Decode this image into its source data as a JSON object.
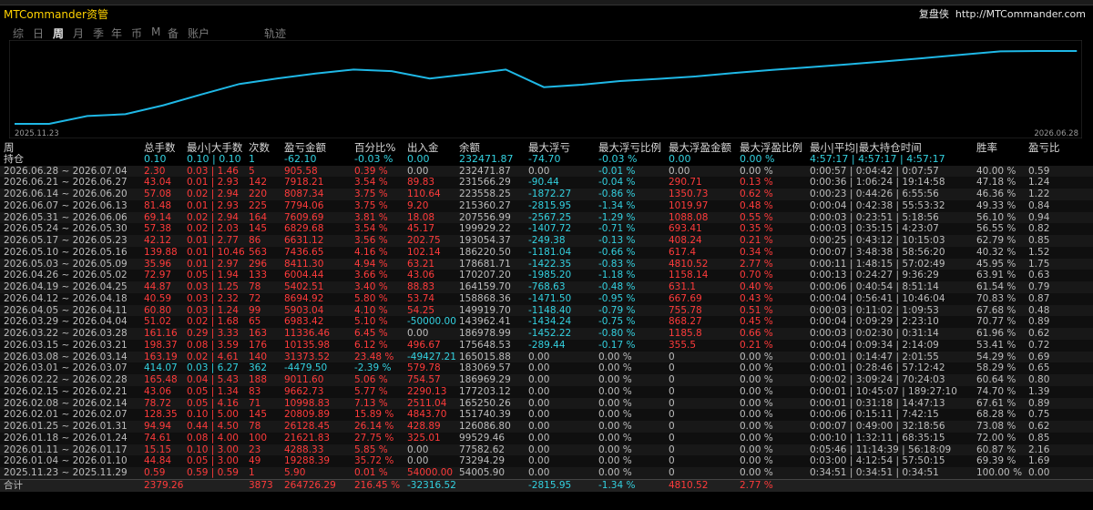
{
  "top_strip": "",
  "header": {
    "app_title": "MTCommander资管",
    "brand_name": "复盘侠",
    "brand_url": "http://MTCommander.com"
  },
  "tabs": [
    "综",
    "日",
    "周",
    "月",
    "季",
    "年",
    "币",
    "M",
    "备",
    "账户",
    "轨迹"
  ],
  "active_tab": "周",
  "chart_data": {
    "type": "line",
    "x_start_label": "2025.11.23",
    "x_end_label": "2026.06.28",
    "y_values": [
      54005.9,
      73294.29,
      77582.62,
      99529.46,
      126086.8,
      151740.39,
      165250.26,
      177203.12,
      186969.29,
      183069.57,
      165015.88,
      175648.53,
      186978.99,
      143962.41,
      149919.7,
      158868.36,
      164159.7,
      170207.2,
      178681.71,
      186220.5,
      193054.37,
      199929.22,
      207556.99,
      215360.27,
      223558.25,
      231566.29,
      232471.87,
      232471.87
    ],
    "line_color": "#1fb8e6"
  },
  "colors": {
    "profit": "#ff3b3b",
    "loss": "#33d1e0",
    "text": "#c8c8c8",
    "title": "#ffd200"
  },
  "table": {
    "corner_label": "周",
    "columns": [
      "总手数",
      "最小|大手数",
      "次数",
      "盈亏金额",
      "百分比%",
      "出入金",
      "余额",
      "最大浮亏",
      "最大浮亏比例",
      "最大浮盈金额",
      "最大浮盈比例",
      "最小|平均|最大持仓时间",
      "",
      "胜率",
      "盈亏比"
    ],
    "holding": {
      "label": "持仓",
      "cells": [
        "0.10",
        "0.10 | 0.10",
        "1",
        "-62.10",
        "-0.03 %",
        "0.00",
        "232471.87",
        "-74.70",
        "-0.03 %",
        "0.00",
        "0.00 %",
        "4:57:17 | 4:57:17 | 4:57:17",
        "",
        "",
        ""
      ]
    },
    "rows": [
      {
        "period": "2026.06.28 ~ 2026.07.04",
        "c": [
          "2.30",
          "0.03 | 1.46",
          "5",
          "905.58",
          "0.39 %",
          "0.00",
          "232471.87",
          "0.00",
          "-0.01 %",
          "0.00",
          "0.00 %",
          "0:00:57 | 0:04:42 | 0:07:57",
          "",
          "40.00 %",
          "0.59"
        ]
      },
      {
        "period": "2026.06.21 ~ 2026.06.27",
        "c": [
          "43.04",
          "0.01 | 2.93",
          "142",
          "7918.21",
          "3.54 %",
          "89.83",
          "231566.29",
          "-90.44",
          "-0.04 %",
          "290.71",
          "0.13 %",
          "0:00:36 | 1:06:24 | 19:14:58",
          "",
          "47.18 %",
          "1.24"
        ]
      },
      {
        "period": "2026.06.14 ~ 2026.06.20",
        "c": [
          "57.08",
          "0.02 | 2.94",
          "220",
          "8087.34",
          "3.75 %",
          "110.64",
          "223558.25",
          "-1872.27",
          "-0.86 %",
          "1350.73",
          "0.62 %",
          "0:00:23 | 0:44:26 | 6:55:56",
          "",
          "46.36 %",
          "1.22"
        ]
      },
      {
        "period": "2026.06.07 ~ 2026.06.13",
        "c": [
          "81.48",
          "0.01 | 2.93",
          "225",
          "7794.06",
          "3.75 %",
          "9.20",
          "215360.27",
          "-2815.95",
          "-1.34 %",
          "1019.97",
          "0.48 %",
          "0:00:04 | 0:42:38 | 55:53:32",
          "",
          "49.33 %",
          "0.84"
        ]
      },
      {
        "period": "2026.05.31 ~ 2026.06.06",
        "c": [
          "69.14",
          "0.02 | 2.94",
          "164",
          "7609.69",
          "3.81 %",
          "18.08",
          "207556.99",
          "-2567.25",
          "-1.29 %",
          "1088.08",
          "0.55 %",
          "0:00:03 | 0:23:51 | 5:18:56",
          "",
          "56.10 %",
          "0.94"
        ]
      },
      {
        "period": "2026.05.24 ~ 2026.05.30",
        "c": [
          "57.38",
          "0.02 | 2.03",
          "145",
          "6829.68",
          "3.54 %",
          "45.17",
          "199929.22",
          "-1407.72",
          "-0.71 %",
          "693.41",
          "0.35 %",
          "0:00:03 | 0:35:15 | 4:23:07",
          "",
          "56.55 %",
          "0.82"
        ]
      },
      {
        "period": "2026.05.17 ~ 2026.05.23",
        "c": [
          "42.12",
          "0.01 | 2.77",
          "86",
          "6631.12",
          "3.56 %",
          "202.75",
          "193054.37",
          "-249.38",
          "-0.13 %",
          "408.24",
          "0.21 %",
          "0:00:25 | 0:43:12 | 10:15:03",
          "",
          "62.79 %",
          "0.85"
        ]
      },
      {
        "period": "2026.05.10 ~ 2026.05.16",
        "c": [
          "139.88",
          "0.01 | 10.46",
          "563",
          "7436.65",
          "4.16 %",
          "102.14",
          "186220.50",
          "-1181.04",
          "-0.66 %",
          "617.4",
          "0.34 %",
          "0:00:07 | 3:48:38 | 58:56:20",
          "",
          "40.32 %",
          "1.52"
        ]
      },
      {
        "period": "2026.05.03 ~ 2026.05.09",
        "c": [
          "35.96",
          "0.01 | 2.97",
          "296",
          "8411.30",
          "4.94 %",
          "63.21",
          "178681.71",
          "-1422.35",
          "-0.83 %",
          "4810.52",
          "2.77 %",
          "0:00:11 | 1:48:15 | 57:02:49",
          "",
          "45.95 %",
          "1.75"
        ]
      },
      {
        "period": "2026.04.26 ~ 2026.05.02",
        "c": [
          "72.97",
          "0.05 | 1.94",
          "133",
          "6004.44",
          "3.66 %",
          "43.06",
          "170207.20",
          "-1985.20",
          "-1.18 %",
          "1158.14",
          "0.70 %",
          "0:00:13 | 0:24:27 | 9:36:29",
          "",
          "63.91 %",
          "0.63"
        ]
      },
      {
        "period": "2026.04.19 ~ 2026.04.25",
        "c": [
          "44.87",
          "0.03 | 1.25",
          "78",
          "5402.51",
          "3.40 %",
          "88.83",
          "164159.70",
          "-768.63",
          "-0.48 %",
          "631.1",
          "0.40 %",
          "0:00:06 | 0:40:54 | 8:51:14",
          "",
          "61.54 %",
          "0.79"
        ]
      },
      {
        "period": "2026.04.12 ~ 2026.04.18",
        "c": [
          "40.59",
          "0.03 | 2.32",
          "72",
          "8694.92",
          "5.80 %",
          "53.74",
          "158868.36",
          "-1471.50",
          "-0.95 %",
          "667.69",
          "0.43 %",
          "0:00:04 | 0:56:41 | 10:46:04",
          "",
          "70.83 %",
          "0.87"
        ]
      },
      {
        "period": "2026.04.05 ~ 2026.04.11",
        "c": [
          "60.80",
          "0.03 | 1.24",
          "99",
          "5903.04",
          "4.10 %",
          "54.25",
          "149919.70",
          "-1148.40",
          "-0.79 %",
          "755.78",
          "0.51 %",
          "0:00:03 | 0:11:02 | 1:09:53",
          "",
          "67.68 %",
          "0.48"
        ]
      },
      {
        "period": "2026.03.29 ~ 2026.04.04",
        "c": [
          "51.02",
          "0.02 | 1.68",
          "65",
          "6983.42",
          "5.10 %",
          "-50000.00",
          "143962.41",
          "-1434.24",
          "-0.75 %",
          "868.27",
          "0.45 %",
          "0:00:04 | 0:09:29 | 2:23:10",
          "",
          "70.77 %",
          "0.89"
        ]
      },
      {
        "period": "2026.03.22 ~ 2026.03.28",
        "c": [
          "161.16",
          "0.29 | 3.33",
          "163",
          "11336.46",
          "6.45 %",
          "0.00",
          "186978.99",
          "-1452.22",
          "-0.80 %",
          "1185.8",
          "0.66 %",
          "0:00:03 | 0:02:30 | 0:31:14",
          "",
          "61.96 %",
          "0.62"
        ]
      },
      {
        "period": "2026.03.15 ~ 2026.03.21",
        "c": [
          "198.37",
          "0.08 | 3.59",
          "176",
          "10135.98",
          "6.12 %",
          "496.67",
          "175648.53",
          "-289.44",
          "-0.17 %",
          "355.5",
          "0.21 %",
          "0:00:04 | 0:09:34 | 2:14:09",
          "",
          "53.41 %",
          "0.72"
        ]
      },
      {
        "period": "2026.03.08 ~ 2026.03.14",
        "c": [
          "163.19",
          "0.02 | 4.61",
          "140",
          "31373.52",
          "23.48 %",
          "-49427.21",
          "165015.88",
          "0.00",
          "0.00 %",
          "0",
          "0.00 %",
          "0:00:01 | 0:14:47 | 2:01:55",
          "",
          "54.29 %",
          "0.69"
        ]
      },
      {
        "period": "2026.03.01 ~ 2026.03.07",
        "c": [
          "414.07",
          "0.03 | 6.27",
          "362",
          "-4479.50",
          "-2.39 %",
          "579.78",
          "183069.57",
          "0.00",
          "0.00 %",
          "0",
          "0.00 %",
          "0:00:01 | 0:28:46 | 57:12:42",
          "",
          "58.29 %",
          "0.65"
        ]
      },
      {
        "period": "2026.02.22 ~ 2026.02.28",
        "c": [
          "165.48",
          "0.04 | 5.43",
          "188",
          "9011.60",
          "5.06 %",
          "754.57",
          "186969.29",
          "0.00",
          "0.00 %",
          "0",
          "0.00 %",
          "0:00:02 | 3:09:24 | 70:24:03",
          "",
          "60.64 %",
          "0.80"
        ]
      },
      {
        "period": "2026.02.15 ~ 2026.02.21",
        "c": [
          "43.06",
          "0.05 | 1.34",
          "83",
          "9662.73",
          "5.77 %",
          "2290.13",
          "177203.12",
          "0.00",
          "0.00 %",
          "0",
          "0.00 %",
          "0:00:01 | 10:45:07 | 189:27:10",
          "",
          "74.70 %",
          "1.39"
        ]
      },
      {
        "period": "2026.02.08 ~ 2026.02.14",
        "c": [
          "78.72",
          "0.05 | 4.16",
          "71",
          "10998.83",
          "7.13 %",
          "2511.04",
          "165250.26",
          "0.00",
          "0.00 %",
          "0",
          "0.00 %",
          "0:00:01 | 0:31:18 | 14:47:13",
          "",
          "67.61 %",
          "0.89"
        ]
      },
      {
        "period": "2026.02.01 ~ 2026.02.07",
        "c": [
          "128.35",
          "0.10 | 5.00",
          "145",
          "20809.89",
          "15.89 %",
          "4843.70",
          "151740.39",
          "0.00",
          "0.00 %",
          "0",
          "0.00 %",
          "0:00:06 | 0:15:11 | 7:42:15",
          "",
          "68.28 %",
          "0.75"
        ]
      },
      {
        "period": "2026.01.25 ~ 2026.01.31",
        "c": [
          "94.94",
          "0.44 | 4.50",
          "78",
          "26128.45",
          "26.14 %",
          "428.89",
          "126086.80",
          "0.00",
          "0.00 %",
          "0",
          "0.00 %",
          "0:00:07 | 0:49:00 | 32:18:56",
          "",
          "73.08 %",
          "0.62"
        ]
      },
      {
        "period": "2026.01.18 ~ 2026.01.24",
        "c": [
          "74.61",
          "0.08 | 4.00",
          "100",
          "21621.83",
          "27.75 %",
          "325.01",
          "99529.46",
          "0.00",
          "0.00 %",
          "0",
          "0.00 %",
          "0:00:10 | 1:32:11 | 68:35:15",
          "",
          "72.00 %",
          "0.85"
        ]
      },
      {
        "period": "2026.01.11 ~ 2026.01.17",
        "c": [
          "15.15",
          "0.10 | 3.00",
          "23",
          "4288.33",
          "5.85 %",
          "0.00",
          "77582.62",
          "0.00",
          "0.00 %",
          "0",
          "0.00 %",
          "0:05:46 | 11:14:39 | 56:18:09",
          "",
          "60.87 %",
          "2.16"
        ]
      },
      {
        "period": "2026.01.04 ~ 2026.01.10",
        "c": [
          "44.84",
          "0.05 | 3.00",
          "49",
          "19288.39",
          "35.72 %",
          "0.00",
          "73294.29",
          "0.00",
          "0.00 %",
          "0",
          "0.00 %",
          "0:03:00 | 4:12:54 | 57:50:15",
          "",
          "69.39 %",
          "1.69"
        ]
      },
      {
        "period": "2025.11.23 ~ 2025.11.29",
        "c": [
          "0.59",
          "0.59 | 0.59",
          "1",
          "5.90",
          "0.01 %",
          "54000.00",
          "54005.90",
          "0.00",
          "0.00 %",
          "0",
          "0.00 %",
          "0:34:51 | 0:34:51 | 0:34:51",
          "",
          "100.00 %",
          "0.00"
        ]
      }
    ],
    "total": {
      "label": "合计",
      "cells": [
        "2379.26",
        "",
        "3873",
        "264726.29",
        "216.45 %",
        "-32316.52",
        "",
        "-2815.95",
        "-1.34 %",
        "4810.52",
        "2.77 %",
        "",
        "",
        "",
        ""
      ]
    }
  }
}
